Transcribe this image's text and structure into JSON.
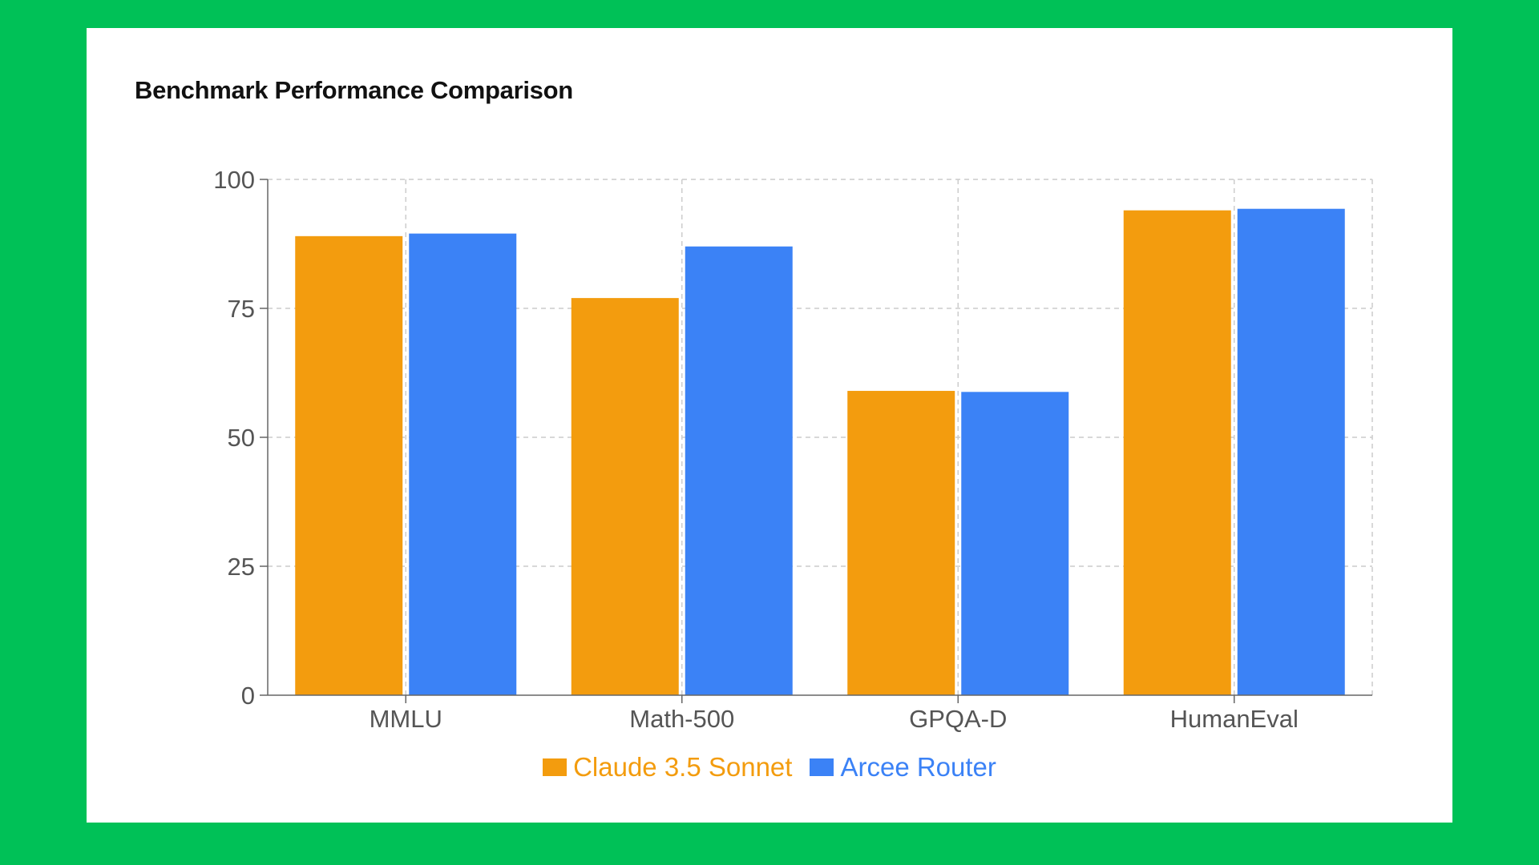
{
  "chart_data": {
    "type": "bar",
    "title": "Benchmark Performance Comparison",
    "categories": [
      "MMLU",
      "Math-500",
      "GPQA-D",
      "HumanEval"
    ],
    "series": [
      {
        "name": "Claude 3.5 Sonnet",
        "color": "#f39c0e",
        "values": [
          89,
          77,
          59,
          94
        ]
      },
      {
        "name": "Arcee Router",
        "color": "#3b82f6",
        "values": [
          89.5,
          87,
          58.8,
          94.3
        ]
      }
    ],
    "yticks": [
      "0",
      "25",
      "50",
      "75",
      "100"
    ],
    "ylim": [
      0,
      100
    ],
    "grid": true,
    "legend": "bottom"
  }
}
